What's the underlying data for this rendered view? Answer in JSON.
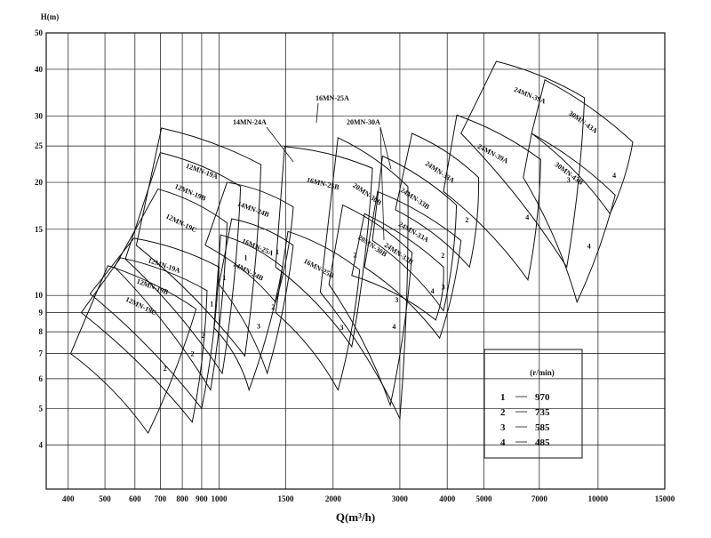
{
  "chart_data": {
    "type": "region",
    "y_label": "H(m)",
    "x_label": "Q(m³/h)",
    "xlog": true,
    "ylog": true,
    "grid": true,
    "xlim": [
      350,
      15000
    ],
    "ylim": [
      3.05,
      50
    ],
    "xticks": [
      400,
      500,
      600,
      700,
      800,
      900,
      1000,
      1500,
      2000,
      3000,
      4000,
      5000,
      7000,
      10000,
      15000
    ],
    "yticks": [
      4,
      5,
      6,
      7,
      8,
      9,
      10,
      15,
      20,
      25,
      30,
      40,
      50
    ],
    "regions": [
      {
        "label": "12MN-19A",
        "speed": "1",
        "q": [
          705,
          1290,
          1170,
          605
        ],
        "h": [
          27.9,
          22.3,
          6.9,
          13.6
        ]
      },
      {
        "label": "12MN-19B",
        "speed": "1",
        "q": [
          700,
          1140,
          1020,
          566
        ],
        "h": [
          24.0,
          19.5,
          6.2,
          12.5
        ]
      },
      {
        "label": "12MN-19C",
        "speed": "1",
        "q": [
          690,
          1050,
          950,
          530
        ],
        "h": [
          19.2,
          15.6,
          5.6,
          11.9
        ]
      },
      {
        "label": "12MN-19A",
        "speed": "2",
        "q": [
          596,
          1000,
          900,
          457
        ],
        "h": [
          14.2,
          11.9,
          5.0,
          10.1
        ]
      },
      {
        "label": "12MN-19B",
        "speed": "2",
        "q": [
          550,
          930,
          850,
          433
        ],
        "h": [
          12.6,
          10.3,
          4.6,
          9.0
        ]
      },
      {
        "label": "12MN-19C",
        "speed": "2",
        "q": [
          509,
          870,
          650,
          406
        ],
        "h": [
          12.0,
          9.2,
          4.3,
          7.0
        ]
      },
      {
        "label": "14MN-24B",
        "speed": "1",
        "q": [
          1050,
          1570,
          1410,
          920
        ],
        "h": [
          20.0,
          17.2,
          9.6,
          13.6
        ]
      },
      {
        "label": "16MN-25A",
        "speed": "2",
        "q": [
          1080,
          1570,
          1340,
          1000
        ],
        "h": [
          16.0,
          13.6,
          6.2,
          10.7
        ]
      },
      {
        "label": "14MN-24B",
        "speed": "3",
        "q": [
          1010,
          1470,
          1200,
          970
        ],
        "h": [
          14.5,
          11.9,
          5.6,
          8.2
        ]
      },
      {
        "label": "16MN-25B",
        "speed": "2",
        "q": [
          1490,
          2540,
          2240,
          1410
        ],
        "h": [
          24.9,
          21.8,
          7.3,
          11.9
        ]
      },
      {
        "label": "16MN-25B",
        "speed": "3",
        "q": [
          1520,
          2350,
          2060,
          1410
        ],
        "h": [
          14.8,
          11.7,
          5.6,
          9.0
        ]
      },
      {
        "label": "20MN-30B",
        "speed": "3",
        "q": [
          2060,
          3150,
          3000,
          1850
        ],
        "h": [
          26.3,
          19.5,
          4.7,
          10.2
        ]
      },
      {
        "label": "20MN-30B",
        "speed": "4",
        "q": [
          2120,
          3230,
          2830,
          1950
        ],
        "h": [
          17.4,
          13.0,
          5.1,
          10.7
        ]
      },
      {
        "label": "24MN-33A",
        "speed": "2",
        "q": [
          3230,
          4840,
          4580,
          2920
        ],
        "h": [
          27.0,
          20.6,
          11.9,
          16.9
        ]
      },
      {
        "label": "24MN-33B",
        "speed": "2",
        "q": [
          2700,
          4230,
          3910,
          2540
        ],
        "h": [
          23.5,
          17.4,
          9.1,
          14.0
        ]
      },
      {
        "label": "24MN-33A",
        "speed": "3",
        "q": [
          2620,
          4350,
          3820,
          2420
        ],
        "h": [
          18.9,
          14.0,
          7.7,
          11.9
        ]
      },
      {
        "label": "24MN-33B",
        "speed": "4",
        "q": [
          2420,
          3910,
          3730,
          2240
        ],
        "h": [
          16.5,
          11.9,
          8.6,
          11.3
        ]
      },
      {
        "label": "24MN-39A",
        "speed": "3",
        "q": [
          5390,
          9210,
          8270,
          4350
        ],
        "h": [
          42.0,
          33.6,
          11.9,
          27.0
        ]
      },
      {
        "label": "24MN-39A",
        "speed": "4",
        "q": [
          4240,
          7060,
          6530,
          3910
        ],
        "h": [
          30.2,
          23.0,
          11.0,
          18.9
        ]
      },
      {
        "label": "30MN-43A",
        "speed": "4",
        "q": [
          7240,
          12350,
          10750,
          6680
        ],
        "h": [
          37.5,
          25.6,
          16.5,
          27.0
        ]
      },
      {
        "label": "30MN-43B",
        "speed": "4",
        "q": [
          6680,
          11100,
          8800,
          6350
        ],
        "h": [
          27.0,
          18.5,
          9.6,
          20.6
        ]
      }
    ],
    "annotations": [
      "14MN-24A",
      "16MN-25A",
      "20MN-30A"
    ],
    "legend_title": "(r/min)",
    "speeds": [
      {
        "label": "1",
        "rpm": 970
      },
      {
        "label": "2",
        "rpm": 735
      },
      {
        "label": "3",
        "rpm": 585
      },
      {
        "label": "4",
        "rpm": 485
      }
    ]
  }
}
